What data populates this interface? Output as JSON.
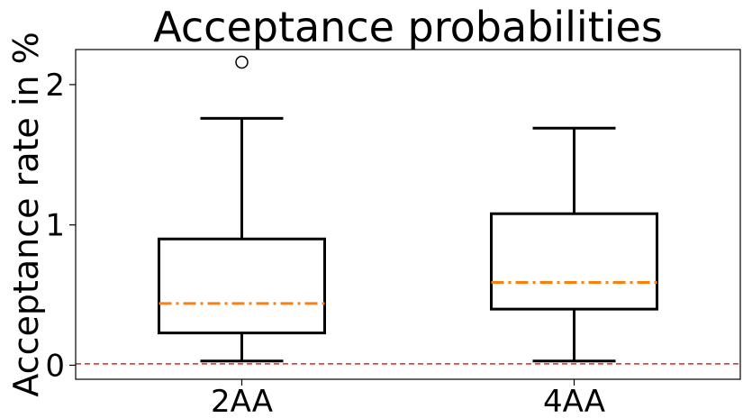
{
  "chart_data": {
    "type": "box",
    "title": "Acceptance probabilities",
    "xlabel": "",
    "ylabel": "Acceptance rate in %",
    "ylim": [
      -0.1,
      2.25
    ],
    "yticks": [
      0,
      1,
      2
    ],
    "categories": [
      "2AA",
      "4AA"
    ],
    "boxes": [
      {
        "label": "2AA",
        "whisker_low": 0.03,
        "q1": 0.23,
        "median": 0.44,
        "q3": 0.9,
        "whisker_high": 1.76,
        "outliers": [
          2.16
        ]
      },
      {
        "label": "4AA",
        "whisker_low": 0.03,
        "q1": 0.4,
        "median": 0.59,
        "q3": 1.08,
        "whisker_high": 1.69,
        "outliers": []
      }
    ],
    "reference_line": {
      "y": 0.01,
      "style": "dashed",
      "color": "#d62728"
    },
    "colors": {
      "box": "#000000",
      "median": "#ff7f0e",
      "outlier": "#000000"
    }
  }
}
